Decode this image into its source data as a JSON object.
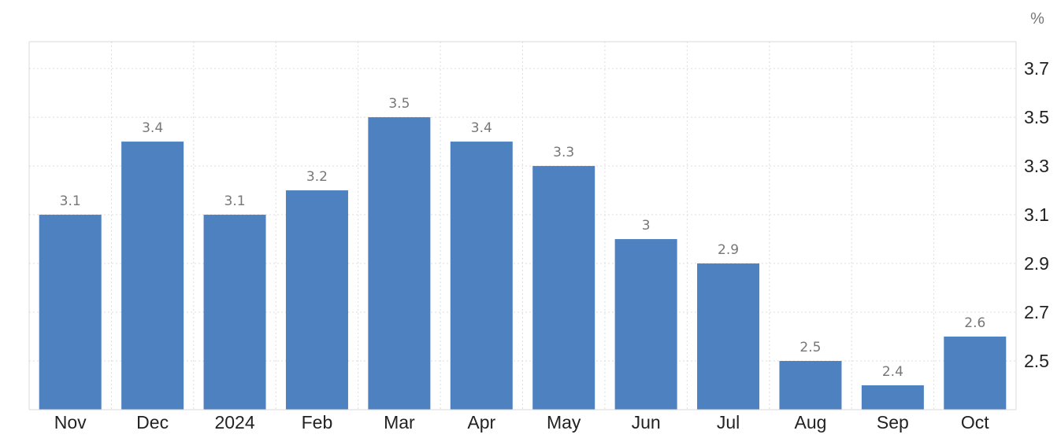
{
  "chart_data": {
    "type": "bar",
    "unit_label": "%",
    "categories": [
      "Nov",
      "Dec",
      "2024",
      "Feb",
      "Mar",
      "Apr",
      "May",
      "Jun",
      "Jul",
      "Aug",
      "Sep",
      "Oct"
    ],
    "values": [
      3.1,
      3.4,
      3.1,
      3.2,
      3.5,
      3.4,
      3.3,
      3,
      2.9,
      2.5,
      2.4,
      2.6
    ],
    "value_labels": [
      "3.1",
      "3.4",
      "3.1",
      "3.2",
      "3.5",
      "3.4",
      "3.3",
      "3",
      "2.9",
      "2.5",
      "2.4",
      "2.6"
    ],
    "y_ticks": [
      2.5,
      2.7,
      2.9,
      3.1,
      3.3,
      3.5,
      3.7
    ],
    "y_tick_labels": [
      "2.5",
      "2.7",
      "2.9",
      "3.1",
      "3.3",
      "3.5",
      "3.7"
    ],
    "ylim": [
      2.3,
      3.81
    ],
    "y_axis_position": "right",
    "grid": true,
    "bar_color": "#4e81c0",
    "title": "",
    "xlabel": "",
    "ylabel": ""
  }
}
